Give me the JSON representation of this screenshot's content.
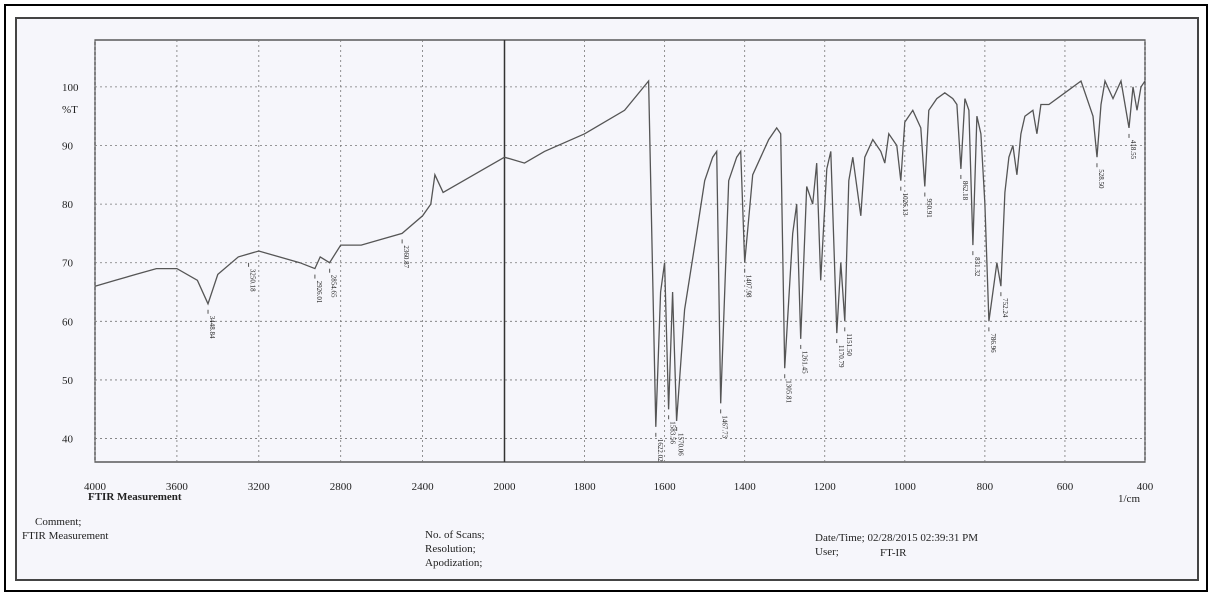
{
  "chart_data": {
    "type": "line",
    "y_label": "%T",
    "x_title": "FTIR Measurement",
    "x_unit": "1/cm",
    "x_scale_break": 2000,
    "x_reversed": true,
    "grid": true,
    "xlim": [
      4000,
      400
    ],
    "ylim": [
      36,
      108
    ],
    "xticks": [
      4000,
      3600,
      3200,
      2800,
      2400,
      2000,
      1800,
      1600,
      1400,
      1200,
      1000,
      800,
      600,
      400
    ],
    "yticks": [
      40,
      50,
      60,
      70,
      80,
      90,
      100
    ],
    "series": [
      {
        "name": "FTIR Measurement",
        "color": "#555",
        "x": [
          4000,
          3900,
          3800,
          3700,
          3600,
          3500,
          3448,
          3400,
          3300,
          3200,
          3100,
          3000,
          2926,
          2900,
          2854,
          2800,
          2700,
          2600,
          2500,
          2400,
          2360,
          2340,
          2300,
          2200,
          2100,
          2000,
          1950,
          1900,
          1800,
          1700,
          1640,
          1622,
          1610,
          1600,
          1590,
          1580,
          1570,
          1550,
          1520,
          1500,
          1480,
          1470,
          1460,
          1440,
          1420,
          1410,
          1400,
          1380,
          1360,
          1340,
          1320,
          1310,
          1300,
          1280,
          1270,
          1260,
          1245,
          1230,
          1220,
          1210,
          1195,
          1185,
          1170,
          1160,
          1150,
          1140,
          1130,
          1110,
          1100,
          1080,
          1060,
          1050,
          1040,
          1020,
          1010,
          1000,
          980,
          960,
          950,
          940,
          920,
          900,
          880,
          870,
          860,
          850,
          840,
          830,
          820,
          810,
          800,
          790,
          780,
          770,
          760,
          750,
          740,
          730,
          720,
          710,
          700,
          680,
          670,
          660,
          640,
          600,
          560,
          530,
          520,
          510,
          500,
          480,
          460,
          440,
          430,
          420,
          410,
          400
        ],
        "values": [
          66,
          67,
          68,
          69,
          69,
          67,
          63,
          68,
          71,
          72,
          71,
          70,
          69,
          71,
          70,
          73,
          73,
          74,
          75,
          78,
          80,
          85,
          82,
          84,
          86,
          88,
          87,
          89,
          92,
          96,
          101,
          42,
          65,
          70,
          45,
          65,
          43,
          62,
          75,
          84,
          88,
          89,
          46,
          84,
          88,
          89,
          70,
          85,
          88,
          91,
          93,
          92,
          52,
          75,
          80,
          57,
          83,
          80,
          87,
          67,
          86,
          89,
          58,
          70,
          60,
          84,
          88,
          78,
          88,
          91,
          89,
          87,
          92,
          90,
          84,
          94,
          96,
          93,
          83,
          96,
          98,
          99,
          98,
          97,
          86,
          98,
          96,
          73,
          95,
          92,
          80,
          60,
          65,
          70,
          66,
          82,
          88,
          90,
          85,
          92,
          95,
          96,
          92,
          97,
          97,
          99,
          101,
          95,
          88,
          97,
          101,
          98,
          101,
          93,
          100,
          96,
          100,
          101
        ]
      }
    ],
    "annotations": [
      {
        "text": "3448.84",
        "x": 3448,
        "y": 63
      },
      {
        "text": "3250.18",
        "x": 3250,
        "y": 71
      },
      {
        "text": "2926.01",
        "x": 2926,
        "y": 69
      },
      {
        "text": "2854.65",
        "x": 2854,
        "y": 70
      },
      {
        "text": "2360.87",
        "x": 2500,
        "y": 75
      },
      {
        "text": "1622.02",
        "x": 1622,
        "y": 42
      },
      {
        "text": "1583.56",
        "x": 1590,
        "y": 45
      },
      {
        "text": "1570.06",
        "x": 1570,
        "y": 43
      },
      {
        "text": "1467.73",
        "x": 1460,
        "y": 46
      },
      {
        "text": "1407.98",
        "x": 1400,
        "y": 70
      },
      {
        "text": "1305.81",
        "x": 1300,
        "y": 52
      },
      {
        "text": "1261.45",
        "x": 1260,
        "y": 57
      },
      {
        "text": "1170.79",
        "x": 1170,
        "y": 58
      },
      {
        "text": "1151.50",
        "x": 1150,
        "y": 60
      },
      {
        "text": "1026.13",
        "x": 1010,
        "y": 84
      },
      {
        "text": "950.91",
        "x": 950,
        "y": 83
      },
      {
        "text": "862.18",
        "x": 860,
        "y": 86
      },
      {
        "text": "831.32",
        "x": 830,
        "y": 73
      },
      {
        "text": "786.96",
        "x": 790,
        "y": 60
      },
      {
        "text": "752.24",
        "x": 760,
        "y": 66
      },
      {
        "text": "528.50",
        "x": 520,
        "y": 88
      },
      {
        "text": "418.55",
        "x": 440,
        "y": 93
      }
    ]
  },
  "footer": {
    "comment": "Comment;",
    "comment_value": "FTIR Measurement",
    "scans": "No. of Scans;",
    "resolution": "Resolution;",
    "apodization": "Apodization;",
    "datetime": "Date/Time; 02/28/2015 02:39:31 PM",
    "user": "User;",
    "user_value": "FT-IR"
  }
}
